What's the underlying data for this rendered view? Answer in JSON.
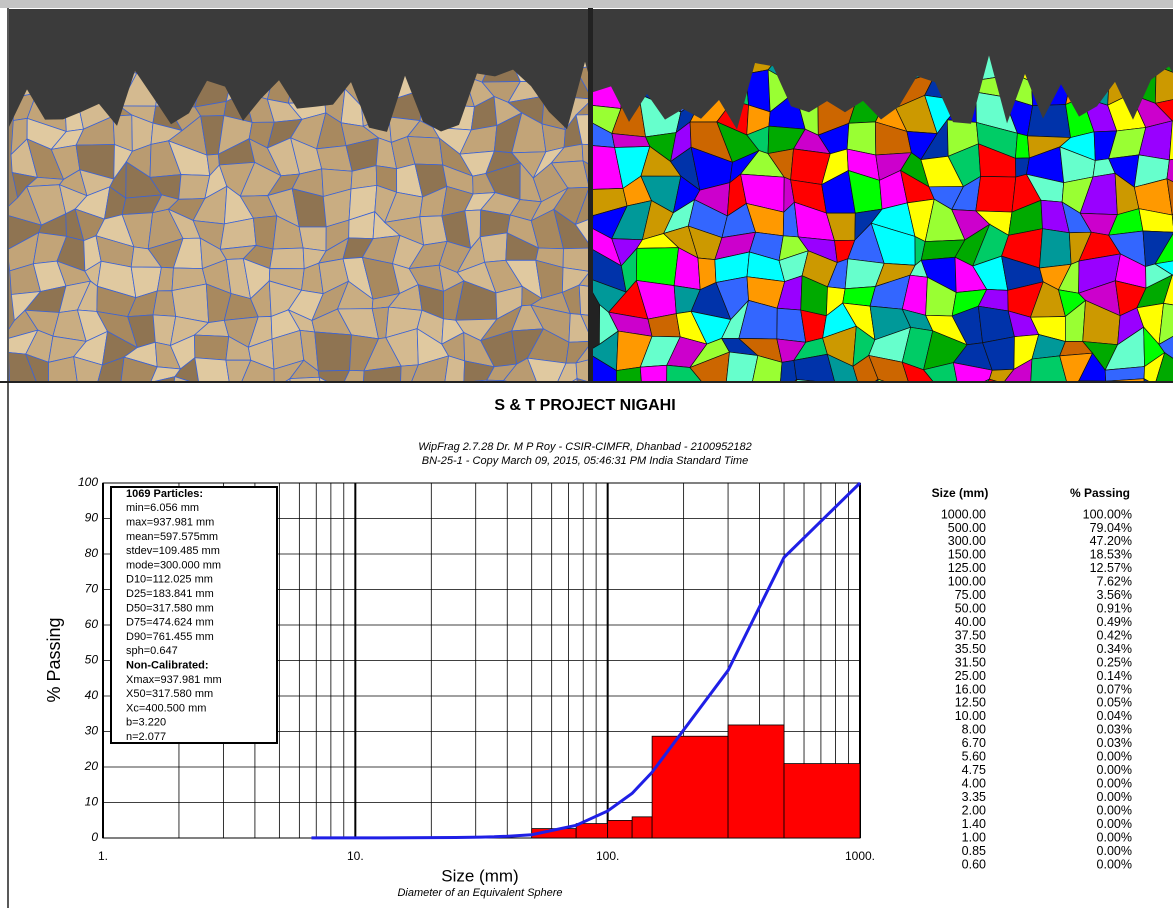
{
  "chart_data": {
    "type": "histogram",
    "title": "S & T PROJECT NIGAHI",
    "subtitle_lines": [
      "WipFrag 2.7.28  Dr. M P Roy - CSIR-CIMFR, Dhanbad - 2100952182",
      "BN-25-1 - Copy   March 09, 2015, 05:46:31 PM India Standard Time"
    ],
    "xlabel": "Size (mm)",
    "xsublabel": "Diameter of an Equivalent Sphere",
    "ylabel": "% Passing",
    "xscale": "log",
    "xlim": [
      1,
      1000
    ],
    "ylim": [
      0,
      100
    ],
    "xticks": [
      {
        "value": 1,
        "label": "1."
      },
      {
        "value": 10,
        "label": "10."
      },
      {
        "value": 100,
        "label": "100."
      },
      {
        "value": 1000,
        "label": "1000."
      }
    ],
    "xminor": [
      2,
      3,
      4,
      5,
      6,
      7,
      8,
      9,
      20,
      30,
      40,
      50,
      60,
      70,
      80,
      90,
      200,
      300,
      400,
      500,
      600,
      700,
      800,
      900
    ],
    "yticks": [
      0,
      10,
      20,
      30,
      40,
      50,
      60,
      70,
      80,
      90,
      100
    ],
    "grid": true,
    "bins": [
      50,
      75,
      100,
      125,
      150,
      300,
      500,
      1000
    ],
    "values": [
      2.65,
      4.06,
      4.95,
      5.96,
      28.67,
      31.84,
      20.96
    ],
    "color": "#ff0000",
    "line": {
      "x": [
        6.7,
        8,
        10,
        12.5,
        16,
        25,
        31.5,
        35.5,
        37.5,
        40,
        50,
        75,
        100,
        125,
        150,
        300,
        500,
        1000
      ],
      "values": [
        0.03,
        0.03,
        0.04,
        0.05,
        0.07,
        0.14,
        0.25,
        0.34,
        0.42,
        0.49,
        0.91,
        3.56,
        7.62,
        12.57,
        18.53,
        47.2,
        79.04,
        100
      ],
      "color": "#1f1fe6"
    },
    "stats_lines": [
      "1069 Particles:",
      "min=6.056 mm",
      "max=937.981 mm",
      "mean=597.575mm",
      "stdev=109.485 mm",
      "mode=300.000 mm",
      "D10=112.025 mm",
      "D25=183.841 mm",
      "D50=317.580 mm",
      "D75=474.624 mm",
      "D90=761.455 mm",
      "sph=0.647",
      "Non-Calibrated:",
      "Xmax=937.981 mm",
      "X50=317.580 mm",
      "Xc=400.500 mm",
      "b=3.220",
      "n=2.077"
    ]
  },
  "table": {
    "headers": [
      "Size (mm)",
      "% Passing"
    ],
    "rows": [
      [
        "1000.00",
        "100.00%"
      ],
      [
        "500.00",
        "79.04%"
      ],
      [
        "300.00",
        "47.20%"
      ],
      [
        "150.00",
        "18.53%"
      ],
      [
        "125.00",
        "12.57%"
      ],
      [
        "100.00",
        "7.62%"
      ],
      [
        "75.00",
        "3.56%"
      ],
      [
        "50.00",
        "0.91%"
      ],
      [
        "40.00",
        "0.49%"
      ],
      [
        "37.50",
        "0.42%"
      ],
      [
        "35.50",
        "0.34%"
      ],
      [
        "31.50",
        "0.25%"
      ],
      [
        "25.00",
        "0.14%"
      ],
      [
        "16.00",
        "0.07%"
      ],
      [
        "12.50",
        "0.05%"
      ],
      [
        "10.00",
        "0.04%"
      ],
      [
        "8.00",
        "0.03%"
      ],
      [
        "6.70",
        "0.03%"
      ],
      [
        "5.60",
        "0.00%"
      ],
      [
        "4.75",
        "0.00%"
      ],
      [
        "4.00",
        "0.00%"
      ],
      [
        "3.35",
        "0.00%"
      ],
      [
        "2.00",
        "0.00%"
      ],
      [
        "1.40",
        "0.00%"
      ],
      [
        "1.00",
        "0.00%"
      ],
      [
        "0.85",
        "0.00%"
      ],
      [
        "0.60",
        "0.00%"
      ]
    ]
  }
}
